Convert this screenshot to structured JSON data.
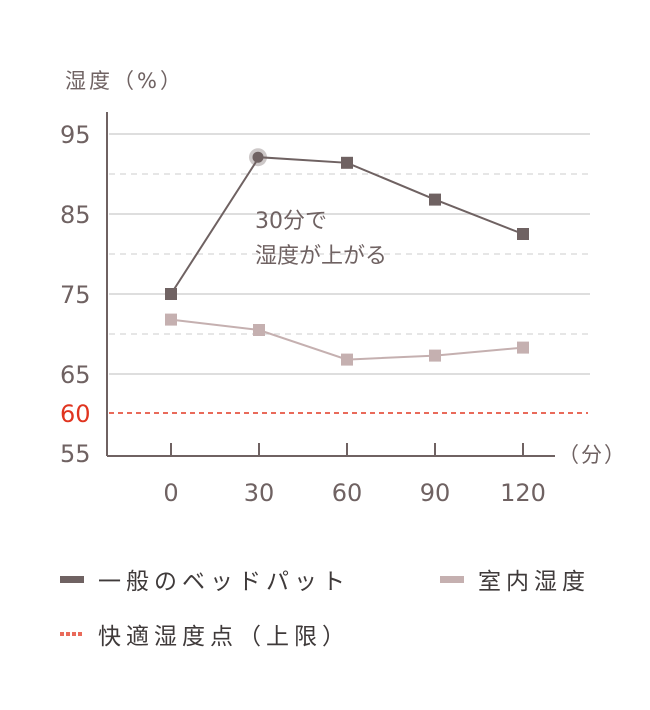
{
  "chart_data": {
    "type": "line",
    "title": "",
    "ylabel": "湿度（%）",
    "xlabel": "（分）",
    "x": [
      0,
      30,
      60,
      90,
      120
    ],
    "categories": [
      "0",
      "30",
      "60",
      "90",
      "120"
    ],
    "ylim": [
      55,
      95
    ],
    "yticks": [
      95,
      85,
      75,
      65,
      60,
      55
    ],
    "grid": true,
    "series": [
      {
        "name": "一般のベッドパット",
        "values": [
          75,
          92.1,
          91.4,
          86.8,
          82.5
        ],
        "color": "#6f6262",
        "marker": "square"
      },
      {
        "name": "室内湿度",
        "values": [
          71.8,
          70.5,
          66.8,
          67.3,
          68.3
        ],
        "color": "#c5b0b0",
        "marker": "square"
      }
    ],
    "reference_lines": [
      {
        "name": "快適湿度点（上限）",
        "y": 60,
        "color": "#e96a5a",
        "style": "dotted"
      }
    ],
    "annotations": [
      {
        "text": "30分で\n湿度が上がる",
        "x": 30,
        "highlight_series": "一般のベッドパット"
      }
    ],
    "legend_position": "bottom"
  },
  "axis": {
    "y_title": "湿度（%）",
    "x_unit": "（分）",
    "y_tick_labels": [
      "95",
      "85",
      "75",
      "65",
      "60",
      "55"
    ],
    "x_tick_labels": [
      "0",
      "30",
      "60",
      "90",
      "120"
    ]
  },
  "annotation": {
    "line1": "30分で",
    "line2": "湿度が上がる"
  },
  "legend": {
    "bed_pad": "一般のベッドパット",
    "room": "室内湿度",
    "comfort": "快適湿度点（上限）"
  },
  "colors": {
    "dark": "#6f6262",
    "light": "#c5b0b0",
    "red": "#e96a5a",
    "grid": "#dedede",
    "axis_text": "#6f6262"
  }
}
